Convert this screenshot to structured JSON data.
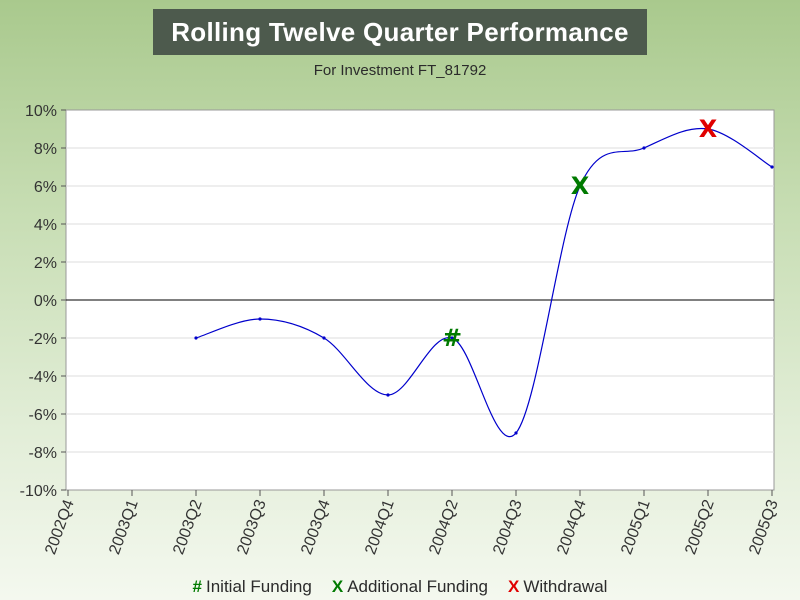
{
  "chart_data": {
    "type": "line",
    "title": "Rolling Twelve Quarter Performance",
    "subtitle": "For Investment FT_81792",
    "categories": [
      "2002Q4",
      "2003Q1",
      "2003Q2",
      "2003Q3",
      "2003Q4",
      "2004Q1",
      "2004Q2",
      "2004Q3",
      "2004Q4",
      "2005Q1",
      "2005Q2",
      "2005Q3"
    ],
    "values": [
      null,
      null,
      -2,
      -1,
      -2,
      -5,
      -2,
      -7,
      6,
      8,
      9,
      7
    ],
    "ylim": [
      -10,
      10
    ],
    "yticks": [
      10,
      8,
      6,
      4,
      2,
      0,
      -2,
      -4,
      -6,
      -8,
      -10
    ],
    "ytick_labels": [
      "10%",
      "8%",
      "6%",
      "4%",
      "2%",
      "0%",
      "-2%",
      "-4%",
      "-6%",
      "-8%",
      "-10%"
    ],
    "zero_line": true,
    "grid": true,
    "line_color": "#0000cc",
    "markers": [
      {
        "symbol": "#",
        "category": "2004Q2",
        "value": -2,
        "color": "#007a00"
      },
      {
        "symbol": "X",
        "category": "2004Q4",
        "value": 6,
        "color": "#007a00"
      },
      {
        "symbol": "X",
        "category": "2005Q2",
        "value": 9,
        "color": "#e00000"
      }
    ],
    "legend": [
      {
        "symbol": "#",
        "label": "Initial Funding",
        "color": "#007a00"
      },
      {
        "symbol": "X",
        "label": "Additional Funding",
        "color": "#007a00"
      },
      {
        "symbol": "X",
        "label": "Withdrawal",
        "color": "#e00000"
      }
    ]
  }
}
